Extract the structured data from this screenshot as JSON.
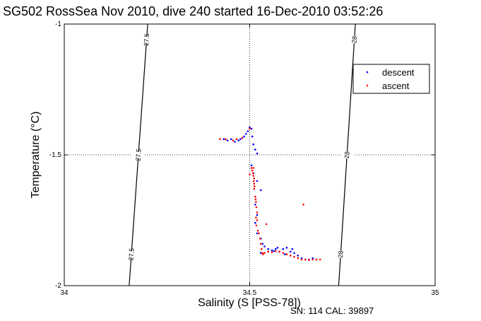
{
  "chart_data": {
    "type": "scatter",
    "title": "SG502 RossSea Nov 2010, dive 240 started 16-Dec-2010 03:52:26",
    "xlabel": "Salinity (S [PSS-78])",
    "ylabel": "Temperature (°C)",
    "xlim": [
      34,
      35
    ],
    "ylim": [
      -2,
      -1
    ],
    "xticks": [
      34,
      34.5,
      35
    ],
    "xtick_labels": [
      "34",
      "34.5",
      "35"
    ],
    "yticks": [
      -2,
      -1.5,
      -1
    ],
    "ytick_labels": [
      "-2",
      "-1.5",
      "-1"
    ],
    "grid": true,
    "legend_position": "top-right",
    "series": [
      {
        "name": "descent",
        "color": "#0000ff",
        "points": [
          [
            34.43,
            -1.44
          ],
          [
            34.44,
            -1.445
          ],
          [
            34.45,
            -1.44
          ],
          [
            34.46,
            -1.45
          ],
          [
            34.47,
            -1.445
          ],
          [
            34.475,
            -1.44
          ],
          [
            34.48,
            -1.435
          ],
          [
            34.485,
            -1.43
          ],
          [
            34.49,
            -1.42
          ],
          [
            34.495,
            -1.41
          ],
          [
            34.5,
            -1.395
          ],
          [
            34.505,
            -1.4
          ],
          [
            34.507,
            -1.43
          ],
          [
            34.51,
            -1.46
          ],
          [
            34.515,
            -1.48
          ],
          [
            34.52,
            -1.495
          ],
          [
            34.505,
            -1.54
          ],
          [
            34.51,
            -1.57
          ],
          [
            34.52,
            -1.6
          ],
          [
            34.53,
            -1.635
          ],
          [
            34.515,
            -1.69
          ],
          [
            34.52,
            -1.73
          ],
          [
            34.515,
            -1.76
          ],
          [
            34.52,
            -1.8
          ],
          [
            34.53,
            -1.82
          ],
          [
            34.535,
            -1.84
          ],
          [
            34.54,
            -1.85
          ],
          [
            34.55,
            -1.86
          ],
          [
            34.56,
            -1.865
          ],
          [
            34.57,
            -1.86
          ],
          [
            34.575,
            -1.855
          ],
          [
            34.58,
            -1.87
          ],
          [
            34.59,
            -1.86
          ],
          [
            34.6,
            -1.855
          ],
          [
            34.61,
            -1.87
          ],
          [
            34.615,
            -1.86
          ],
          [
            34.62,
            -1.875
          ],
          [
            34.63,
            -1.885
          ],
          [
            34.64,
            -1.895
          ],
          [
            34.65,
            -1.9
          ],
          [
            34.66,
            -1.9
          ],
          [
            34.67,
            -1.895
          ],
          [
            34.68,
            -1.9
          ],
          [
            34.53,
            -1.875
          ],
          [
            34.55,
            -1.87
          ],
          [
            34.565,
            -1.868
          ],
          [
            34.595,
            -1.88
          ]
        ]
      },
      {
        "name": "ascent",
        "color": "#ff0000",
        "points": [
          [
            34.42,
            -1.44
          ],
          [
            34.435,
            -1.44
          ],
          [
            34.455,
            -1.445
          ],
          [
            34.465,
            -1.44
          ],
          [
            34.48,
            -1.435
          ],
          [
            34.5,
            -1.4
          ],
          [
            34.505,
            -1.55
          ],
          [
            34.507,
            -1.56
          ],
          [
            34.509,
            -1.57
          ],
          [
            34.51,
            -1.58
          ],
          [
            34.512,
            -1.59
          ],
          [
            34.511,
            -1.6
          ],
          [
            34.512,
            -1.61
          ],
          [
            34.513,
            -1.62
          ],
          [
            34.512,
            -1.63
          ],
          [
            34.515,
            -1.66
          ],
          [
            34.516,
            -1.67
          ],
          [
            34.517,
            -1.68
          ],
          [
            34.518,
            -1.7
          ],
          [
            34.52,
            -1.72
          ],
          [
            34.517,
            -1.74
          ],
          [
            34.52,
            -1.75
          ],
          [
            34.518,
            -1.77
          ],
          [
            34.522,
            -1.79
          ],
          [
            34.525,
            -1.8
          ],
          [
            34.528,
            -1.82
          ],
          [
            34.53,
            -1.84
          ],
          [
            34.532,
            -1.86
          ],
          [
            34.534,
            -1.875
          ],
          [
            34.536,
            -1.88
          ],
          [
            34.54,
            -1.875
          ],
          [
            34.55,
            -1.87
          ],
          [
            34.56,
            -1.872
          ],
          [
            34.57,
            -1.868
          ],
          [
            34.58,
            -1.87
          ],
          [
            34.59,
            -1.875
          ],
          [
            34.6,
            -1.88
          ],
          [
            34.61,
            -1.885
          ],
          [
            34.62,
            -1.89
          ],
          [
            34.63,
            -1.895
          ],
          [
            34.64,
            -1.9
          ],
          [
            34.65,
            -1.9
          ],
          [
            34.66,
            -1.902
          ],
          [
            34.67,
            -1.9
          ],
          [
            34.68,
            -1.9
          ],
          [
            34.69,
            -1.9
          ],
          [
            34.645,
            -1.69
          ],
          [
            34.545,
            -1.765
          ],
          [
            34.5,
            -1.575
          ],
          [
            34.51,
            -1.55
          ]
        ]
      }
    ],
    "isopycnals": [
      {
        "label": "27.5",
        "points": [
          [
            34.225,
            -1
          ],
          [
            34.175,
            -2
          ]
        ]
      },
      {
        "label": "28",
        "points": [
          [
            34.785,
            -1
          ],
          [
            34.74,
            -2
          ]
        ]
      }
    ],
    "annotations": [
      "SN: 114  CAL: 39897"
    ]
  }
}
